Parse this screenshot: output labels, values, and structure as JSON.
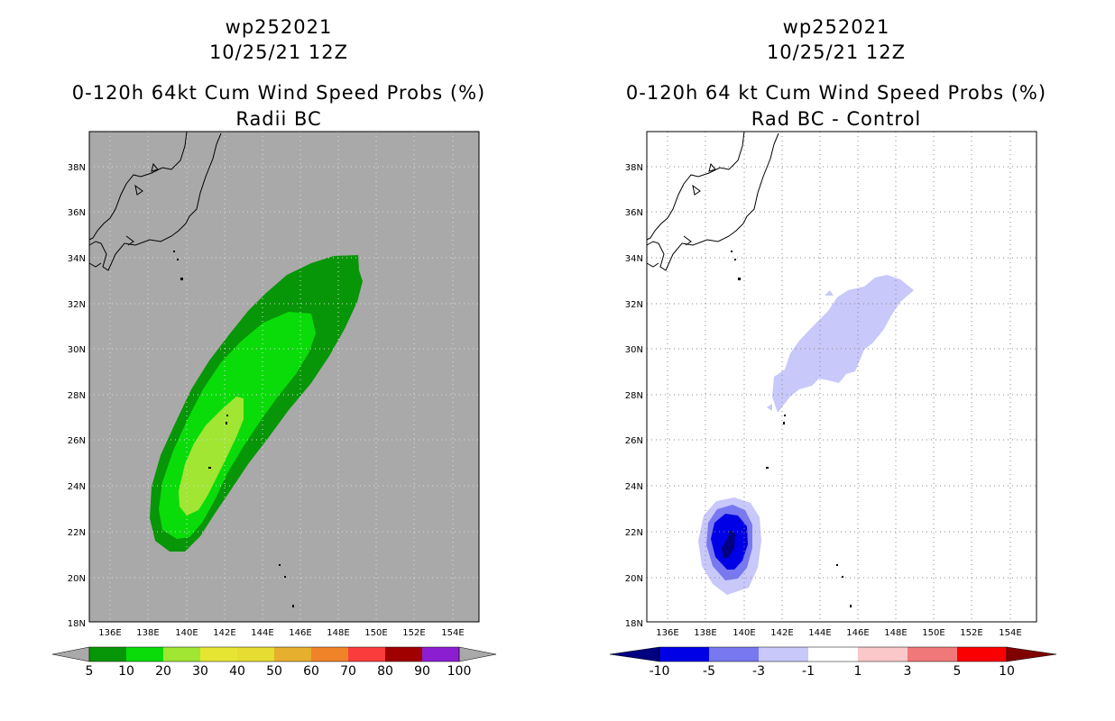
{
  "left": {
    "title_line1": "wp252021",
    "title_line2": "10/25/21 12Z",
    "title_line3": "0-120h 64kt Cum Wind Speed Probs (%)",
    "title_line4": "Radii BC",
    "background_color": "#a9a9a9",
    "fill_colors": {
      "p5": "#079607",
      "p10": "#0adc0a",
      "p20": "#a0e632",
      "grid": "#e0e0e0"
    },
    "colorbar": {
      "colors": [
        "#079607",
        "#0adc0a",
        "#a0e632",
        "#e6e632",
        "#e6dc32",
        "#e6af2d",
        "#f08228",
        "#fa3c3c",
        "#a00000",
        "#8c1ed2"
      ],
      "end_color_low": "#a9a9a9",
      "end_color_high": "#a9a9a9",
      "labels": [
        "5",
        "10",
        "20",
        "30",
        "40",
        "50",
        "60",
        "70",
        "80",
        "90",
        "100"
      ]
    }
  },
  "right": {
    "title_line1": "wp252021",
    "title_line2": "10/25/21 12Z",
    "title_line3": "0-120h 64 kt Cum Wind Speed Probs (%)",
    "title_line4": "Rad BC - Control",
    "background_color": "#ffffff",
    "fill_colors": {
      "m1": "#c8c8fa",
      "m3": "#7878f0",
      "m5": "#0000e6",
      "m10": "#000080",
      "grid": "#888888"
    },
    "colorbar": {
      "colors": [
        "#0000e6",
        "#7878f0",
        "#c8c8fa",
        "#ffffff",
        "#fac8c8",
        "#f07878",
        "#fa0000"
      ],
      "end_color_low": "#000080",
      "end_color_high": "#800000",
      "labels": [
        "-10",
        "-5",
        "-3",
        "-1",
        "1",
        "3",
        "5",
        "10"
      ]
    }
  },
  "axes": {
    "lon_labels": [
      "136E",
      "138E",
      "140E",
      "142E",
      "144E",
      "146E",
      "148E",
      "150E",
      "152E",
      "154E"
    ],
    "lat_labels": [
      "18N",
      "20N",
      "22N",
      "24N",
      "26N",
      "28N",
      "30N",
      "32N",
      "34N",
      "36N",
      "38N"
    ]
  }
}
